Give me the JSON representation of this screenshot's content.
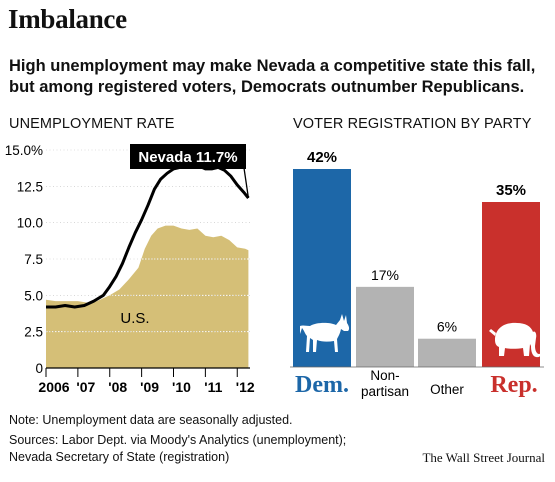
{
  "header": {
    "title": "Imbalance",
    "subtitle": "High unemployment may make Nevada a competitive state this fall, but among registered voters, Democrats outnumber Republicans."
  },
  "footer": {
    "note": "Note: Unemployment data are seasonally adjusted.",
    "source_line1": "Sources: Labor Dept. via Moody's Analytics (unemployment);",
    "source_line2": "Nevada Secretary of State (registration)",
    "credit": "The Wall Street Journal"
  },
  "colors": {
    "us_fill": "#d5bf77",
    "nevada_line": "#000000",
    "dem": "#1d67a8",
    "rep": "#c9302c",
    "neutral": "#b3b3b3",
    "grid": "#ffffff"
  },
  "chart_data": [
    {
      "type": "area",
      "title": "UNEMPLOYMENT RATE",
      "x_tick_labels": [
        "2006",
        "'07",
        "'08",
        "'09",
        "'10",
        "'11",
        "'12"
      ],
      "y_tick_labels": [
        "15.0%",
        "12.5",
        "10.0",
        "7.5",
        "5.0",
        "2.5",
        "0"
      ],
      "ylim": [
        0,
        15
      ],
      "xlim": [
        2006.0,
        2012.4
      ],
      "grid": true,
      "series": [
        {
          "name": "U.S.",
          "style": "filled area",
          "x": [
            2006.0,
            2006.3,
            2006.6,
            2007.0,
            2007.3,
            2007.6,
            2008.0,
            2008.3,
            2008.6,
            2008.9,
            2009.1,
            2009.3,
            2009.5,
            2009.75,
            2010.0,
            2010.25,
            2010.5,
            2010.75,
            2011.0,
            2011.25,
            2011.5,
            2011.75,
            2012.0,
            2012.25,
            2012.35
          ],
          "values": [
            4.7,
            4.6,
            4.6,
            4.6,
            4.5,
            4.6,
            5.0,
            5.4,
            6.1,
            6.9,
            8.2,
            9.1,
            9.6,
            9.8,
            9.8,
            9.6,
            9.5,
            9.6,
            9.1,
            9.0,
            9.1,
            8.8,
            8.3,
            8.2,
            8.1
          ]
        },
        {
          "name": "Nevada",
          "style": "line",
          "callout": "Nevada 11.7%",
          "x": [
            2006.0,
            2006.3,
            2006.6,
            2006.9,
            2007.2,
            2007.5,
            2007.8,
            2008.0,
            2008.2,
            2008.4,
            2008.6,
            2008.8,
            2009.0,
            2009.2,
            2009.4,
            2009.6,
            2009.8,
            2010.0,
            2010.2,
            2010.4,
            2010.6,
            2010.8,
            2011.0,
            2011.2,
            2011.4,
            2011.6,
            2011.8,
            2012.0,
            2012.2,
            2012.35
          ],
          "values": [
            4.2,
            4.2,
            4.3,
            4.2,
            4.3,
            4.6,
            5.0,
            5.6,
            6.3,
            7.2,
            8.3,
            9.3,
            10.2,
            11.2,
            12.3,
            13.0,
            13.4,
            13.7,
            13.8,
            13.8,
            14.0,
            13.9,
            13.7,
            13.7,
            13.8,
            13.6,
            13.2,
            12.6,
            12.1,
            11.7
          ]
        }
      ],
      "annotations": [
        "U.S."
      ]
    },
    {
      "type": "bar",
      "title": "VOTER REGISTRATION BY PARTY",
      "categories": [
        "Dem.",
        "Non-partisan",
        "Other",
        "Rep."
      ],
      "values": [
        42,
        17,
        6,
        35
      ],
      "data_labels": [
        "42%",
        "17%",
        "6%",
        "35%"
      ],
      "ylim": [
        0,
        42
      ],
      "icons": [
        "donkey-icon",
        "",
        "",
        "elephant-icon"
      ]
    }
  ]
}
